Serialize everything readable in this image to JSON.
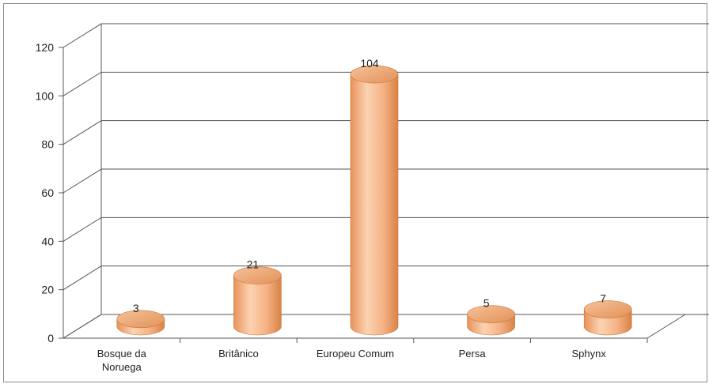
{
  "chart_data": {
    "type": "bar",
    "style": "3d-cylinder",
    "categories": [
      "Bosque da Noruega",
      "Britânico",
      "Europeu Comum",
      "Persa",
      "Sphynx"
    ],
    "category_lines": [
      [
        "Bosque da",
        "Noruega"
      ],
      [
        "Britânico"
      ],
      [
        "Europeu Comum"
      ],
      [
        "Persa"
      ],
      [
        "Sphynx"
      ]
    ],
    "values": [
      3,
      21,
      104,
      5,
      7
    ],
    "ylim": [
      0,
      120
    ],
    "yticks": [
      0,
      20,
      40,
      60,
      80,
      100,
      120
    ],
    "grid": true,
    "legend": "none",
    "data_labels": true,
    "colors": {
      "bar": "#f4b183",
      "bar_light": "#fbd6b8",
      "bar_dark": "#e08a4f",
      "grid": "#555555"
    }
  }
}
